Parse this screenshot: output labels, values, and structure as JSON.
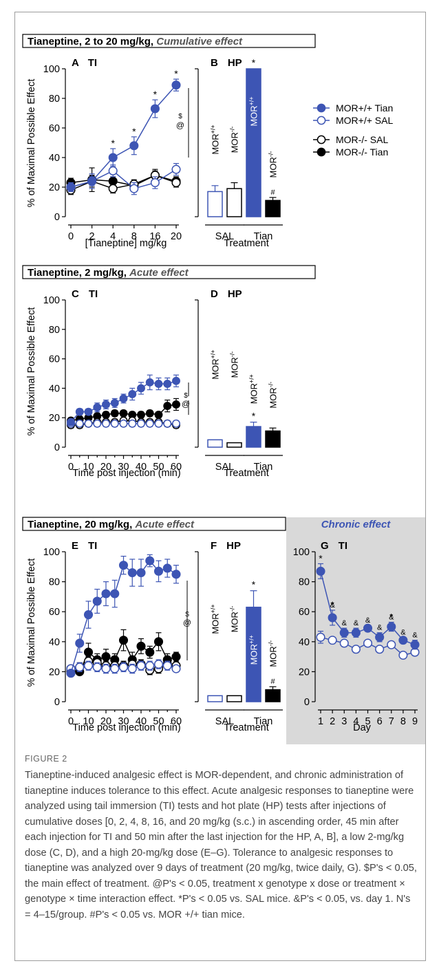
{
  "colors": {
    "blue": "#3d55b4",
    "black": "#000000",
    "gray_panel": "#d9d9d9",
    "chronic_title": "#3d55b4"
  },
  "labels": {
    "row1_title_main": "Tianeptine, 2 to 20 mg/kg, ",
    "row1_title_em": "Cumulative effect",
    "row2_title_main": "Tianeptine, 2 mg/kg, ",
    "row2_title_em": "Acute effect",
    "row3_title_main": "Tianeptine, 20 mg/kg, ",
    "row3_title_em": "Acute effect",
    "chronic_title": "Chronic effect",
    "panel_A": "A",
    "panel_B": "B",
    "panel_C": "C",
    "panel_D": "D",
    "panel_E": "E",
    "panel_F": "F",
    "panel_G": "G",
    "ti": "TI",
    "hp": "HP",
    "ylabel": "% of Maximal Possible Effect",
    "xlabel_A": "[Tianeptine] mg/kg",
    "xlabel_C": "Time post injection (min)",
    "xlabel_E": "Time post injection (min)",
    "xlabel_hp": "Treatment",
    "xlabel_G": "Day",
    "sal": "SAL",
    "tian": "Tian",
    "mor_pp": "MOR+/+",
    "mor_mm": "MOR-/-",
    "sig_star": "*",
    "sig_amp": "&",
    "sig_dollar": "$",
    "sig_at": "@",
    "sig_hash": "#"
  },
  "legend": [
    {
      "label": "MOR+/+ Tian",
      "color": "#3d55b4",
      "filled": true
    },
    {
      "label": "MOR+/+ SAL",
      "color": "#3d55b4",
      "filled": false
    },
    {
      "label": "MOR-/- SAL",
      "color": "#000000",
      "filled": false
    },
    {
      "label": "MOR-/- Tian",
      "color": "#000000",
      "filled": true
    }
  ],
  "chart_data": [
    {
      "id": "A",
      "type": "line",
      "ylabel": "% of Maximal Possible Effect",
      "xlabel": "[Tianeptine] mg/kg",
      "x_ticks": [
        "0",
        "2",
        "4",
        "8",
        "16",
        "20"
      ],
      "ylim": [
        0,
        100
      ],
      "yticks": [
        0,
        20,
        40,
        60,
        80,
        100
      ],
      "series": [
        {
          "name": "MOR+/+ Tian",
          "values": [
            20,
            24,
            40,
            48,
            73,
            89
          ],
          "err": [
            3,
            3,
            6,
            6,
            6,
            4
          ]
        },
        {
          "name": "MOR+/+ SAL",
          "values": [
            20,
            24,
            31,
            19,
            23,
            32
          ],
          "err": [
            3,
            5,
            4,
            4,
            4,
            4
          ]
        },
        {
          "name": "MOR-/- SAL",
          "values": [
            18,
            24,
            19,
            22,
            28,
            23
          ],
          "err": [
            3,
            4,
            3,
            3,
            4,
            3
          ]
        },
        {
          "name": "MOR-/- Tian",
          "values": [
            23,
            25,
            24,
            21,
            28,
            24
          ],
          "err": [
            3,
            8,
            3,
            3,
            3,
            3
          ]
        }
      ],
      "stars": [
        2,
        3,
        4,
        5
      ]
    },
    {
      "id": "B",
      "type": "bar",
      "xlabel": "Treatment",
      "categories": [
        "SAL",
        "Tian"
      ],
      "ylim": [
        0,
        100
      ],
      "bars": [
        {
          "name": "MOR+/+ SAL",
          "value": 17,
          "err": 4
        },
        {
          "name": "MOR-/- SAL",
          "value": 19,
          "err": 4
        },
        {
          "name": "MOR+/+ Tian",
          "value": 100,
          "err": 0
        },
        {
          "name": "MOR-/- Tian",
          "value": 11,
          "err": 2
        }
      ]
    },
    {
      "id": "C",
      "type": "line",
      "ylabel": "% of Maximal Possible Effect",
      "xlabel": "Time post injection (min)",
      "x": [
        0,
        5,
        10,
        15,
        20,
        25,
        30,
        35,
        40,
        45,
        50,
        55,
        60
      ],
      "x_ticks": [
        0,
        10,
        20,
        30,
        40,
        50,
        60
      ],
      "ylim": [
        0,
        100
      ],
      "yticks": [
        0,
        20,
        40,
        60,
        80,
        100
      ],
      "series": [
        {
          "name": "MOR+/+ Tian",
          "values": [
            17,
            24,
            24,
            27,
            29,
            30,
            33,
            36,
            40,
            44,
            43,
            43,
            45
          ],
          "err": [
            2,
            2,
            2,
            3,
            3,
            3,
            3,
            4,
            4,
            5,
            4,
            4,
            4
          ]
        },
        {
          "name": "MOR+/+ SAL",
          "values": [
            16,
            16,
            16,
            16,
            16,
            16,
            16,
            16,
            16,
            16,
            16,
            16,
            16
          ],
          "err": [
            2,
            2,
            2,
            2,
            2,
            2,
            2,
            2,
            2,
            2,
            2,
            2,
            2
          ]
        },
        {
          "name": "MOR-/- SAL",
          "values": [
            15,
            15,
            16,
            17,
            17,
            17,
            18,
            18,
            17,
            17,
            17,
            16,
            15
          ],
          "err": [
            2,
            2,
            2,
            2,
            2,
            2,
            2,
            2,
            2,
            2,
            2,
            2,
            2
          ]
        },
        {
          "name": "MOR-/- Tian",
          "values": [
            18,
            19,
            20,
            21,
            22,
            23,
            23,
            22,
            22,
            23,
            22,
            28,
            29
          ],
          "err": [
            2,
            2,
            2,
            2,
            2,
            2,
            2,
            2,
            2,
            2,
            2,
            4,
            4
          ]
        }
      ]
    },
    {
      "id": "D",
      "type": "bar",
      "xlabel": "Treatment",
      "categories": [
        "SAL",
        "Tian"
      ],
      "ylim": [
        0,
        100
      ],
      "bars": [
        {
          "name": "MOR+/+ SAL",
          "value": 5,
          "err": 0
        },
        {
          "name": "MOR-/- SAL",
          "value": 3,
          "err": 0
        },
        {
          "name": "MOR+/+ Tian",
          "value": 14,
          "err": 3
        },
        {
          "name": "MOR-/- Tian",
          "value": 11,
          "err": 2
        }
      ]
    },
    {
      "id": "E",
      "type": "line",
      "ylabel": "% of Maximal Possible Effect",
      "xlabel": "Time post injection (min)",
      "x": [
        0,
        5,
        10,
        15,
        20,
        25,
        30,
        35,
        40,
        45,
        50,
        55,
        60
      ],
      "x_ticks": [
        0,
        10,
        20,
        30,
        40,
        50,
        60
      ],
      "ylim": [
        0,
        100
      ],
      "yticks": [
        0,
        20,
        40,
        60,
        80,
        100
      ],
      "series": [
        {
          "name": "MOR+/+ Tian",
          "values": [
            19,
            39,
            58,
            67,
            72,
            72,
            91,
            86,
            86,
            94,
            87,
            89,
            85
          ],
          "err": [
            2,
            6,
            9,
            8,
            8,
            9,
            6,
            9,
            9,
            4,
            7,
            6,
            6
          ]
        },
        {
          "name": "MOR+/+ SAL",
          "values": [
            22,
            23,
            24,
            23,
            22,
            22,
            23,
            22,
            24,
            24,
            25,
            24,
            22
          ],
          "err": [
            2,
            3,
            3,
            3,
            3,
            3,
            3,
            3,
            3,
            3,
            3,
            3,
            2
          ]
        },
        {
          "name": "MOR-/- SAL",
          "values": [
            22,
            23,
            27,
            26,
            24,
            24,
            24,
            25,
            25,
            21,
            22,
            25,
            24
          ],
          "err": [
            2,
            3,
            3,
            3,
            3,
            3,
            3,
            3,
            3,
            3,
            3,
            3,
            2
          ]
        },
        {
          "name": "MOR-/- Tian",
          "values": [
            20,
            20,
            33,
            28,
            30,
            28,
            41,
            28,
            37,
            33,
            40,
            28,
            30
          ],
          "err": [
            2,
            2,
            6,
            4,
            5,
            4,
            7,
            5,
            5,
            4,
            6,
            4,
            3
          ]
        }
      ]
    },
    {
      "id": "F",
      "type": "bar",
      "xlabel": "Treatment",
      "categories": [
        "SAL",
        "Tian"
      ],
      "ylim": [
        0,
        100
      ],
      "bars": [
        {
          "name": "MOR+/+ SAL",
          "value": 4,
          "err": 0
        },
        {
          "name": "MOR-/- SAL",
          "value": 4,
          "err": 0
        },
        {
          "name": "MOR+/+ Tian",
          "value": 63,
          "err": 11
        },
        {
          "name": "MOR-/- Tian",
          "value": 8,
          "err": 2
        }
      ]
    },
    {
      "id": "G",
      "type": "line",
      "xlabel": "Day",
      "x": [
        1,
        2,
        3,
        4,
        5,
        6,
        7,
        8,
        9
      ],
      "ylim": [
        0,
        100
      ],
      "yticks": [
        0,
        20,
        40,
        60,
        80,
        100
      ],
      "series": [
        {
          "name": "MOR+/+ Tian",
          "values": [
            87,
            56,
            46,
            46,
            49,
            43,
            50,
            41,
            38
          ],
          "err": [
            5,
            5,
            3,
            3,
            2,
            3,
            3,
            2,
            3
          ]
        },
        {
          "name": "MOR+/+ SAL",
          "values": [
            43,
            41,
            39,
            35,
            39,
            35,
            38,
            31,
            33
          ],
          "err": [
            4,
            2,
            2,
            2,
            2,
            2,
            2,
            2,
            2
          ]
        }
      ],
      "stars": [
        0,
        1,
        6
      ],
      "amps": [
        1,
        2,
        3,
        4,
        5,
        6,
        7,
        8
      ]
    }
  ],
  "caption": {
    "label": "FIGURE 2",
    "text": "Tianeptine-induced analgesic effect is MOR-dependent, and chronic administration of tianeptine induces tolerance to this effect. Acute analgesic responses to tianeptine were analyzed using tail immersion (TI) tests and hot plate (HP) tests after injections of cumulative doses [0, 2, 4, 8, 16, and 20 mg/kg (s.c.) in ascending order, 45 min after each injection for TI and 50 min after the last injection for the HP, A, B], a low 2-mg/kg dose (C, D), and a high 20-mg/kg dose (E–G). Tolerance to analgesic responses to tianeptine was analyzed over 9 days of treatment (20 mg/kg, twice daily, G). $P's < 0.05, the main effect of treatment. @P's < 0.05, treatment x genotype x dose or treatment × genotype × time interaction effect. *P's < 0.05 vs. SAL mice. &P's < 0.05, vs. day 1. N's = 4–15/group. #P's < 0.05 vs. MOR +/+ tian mice."
  }
}
